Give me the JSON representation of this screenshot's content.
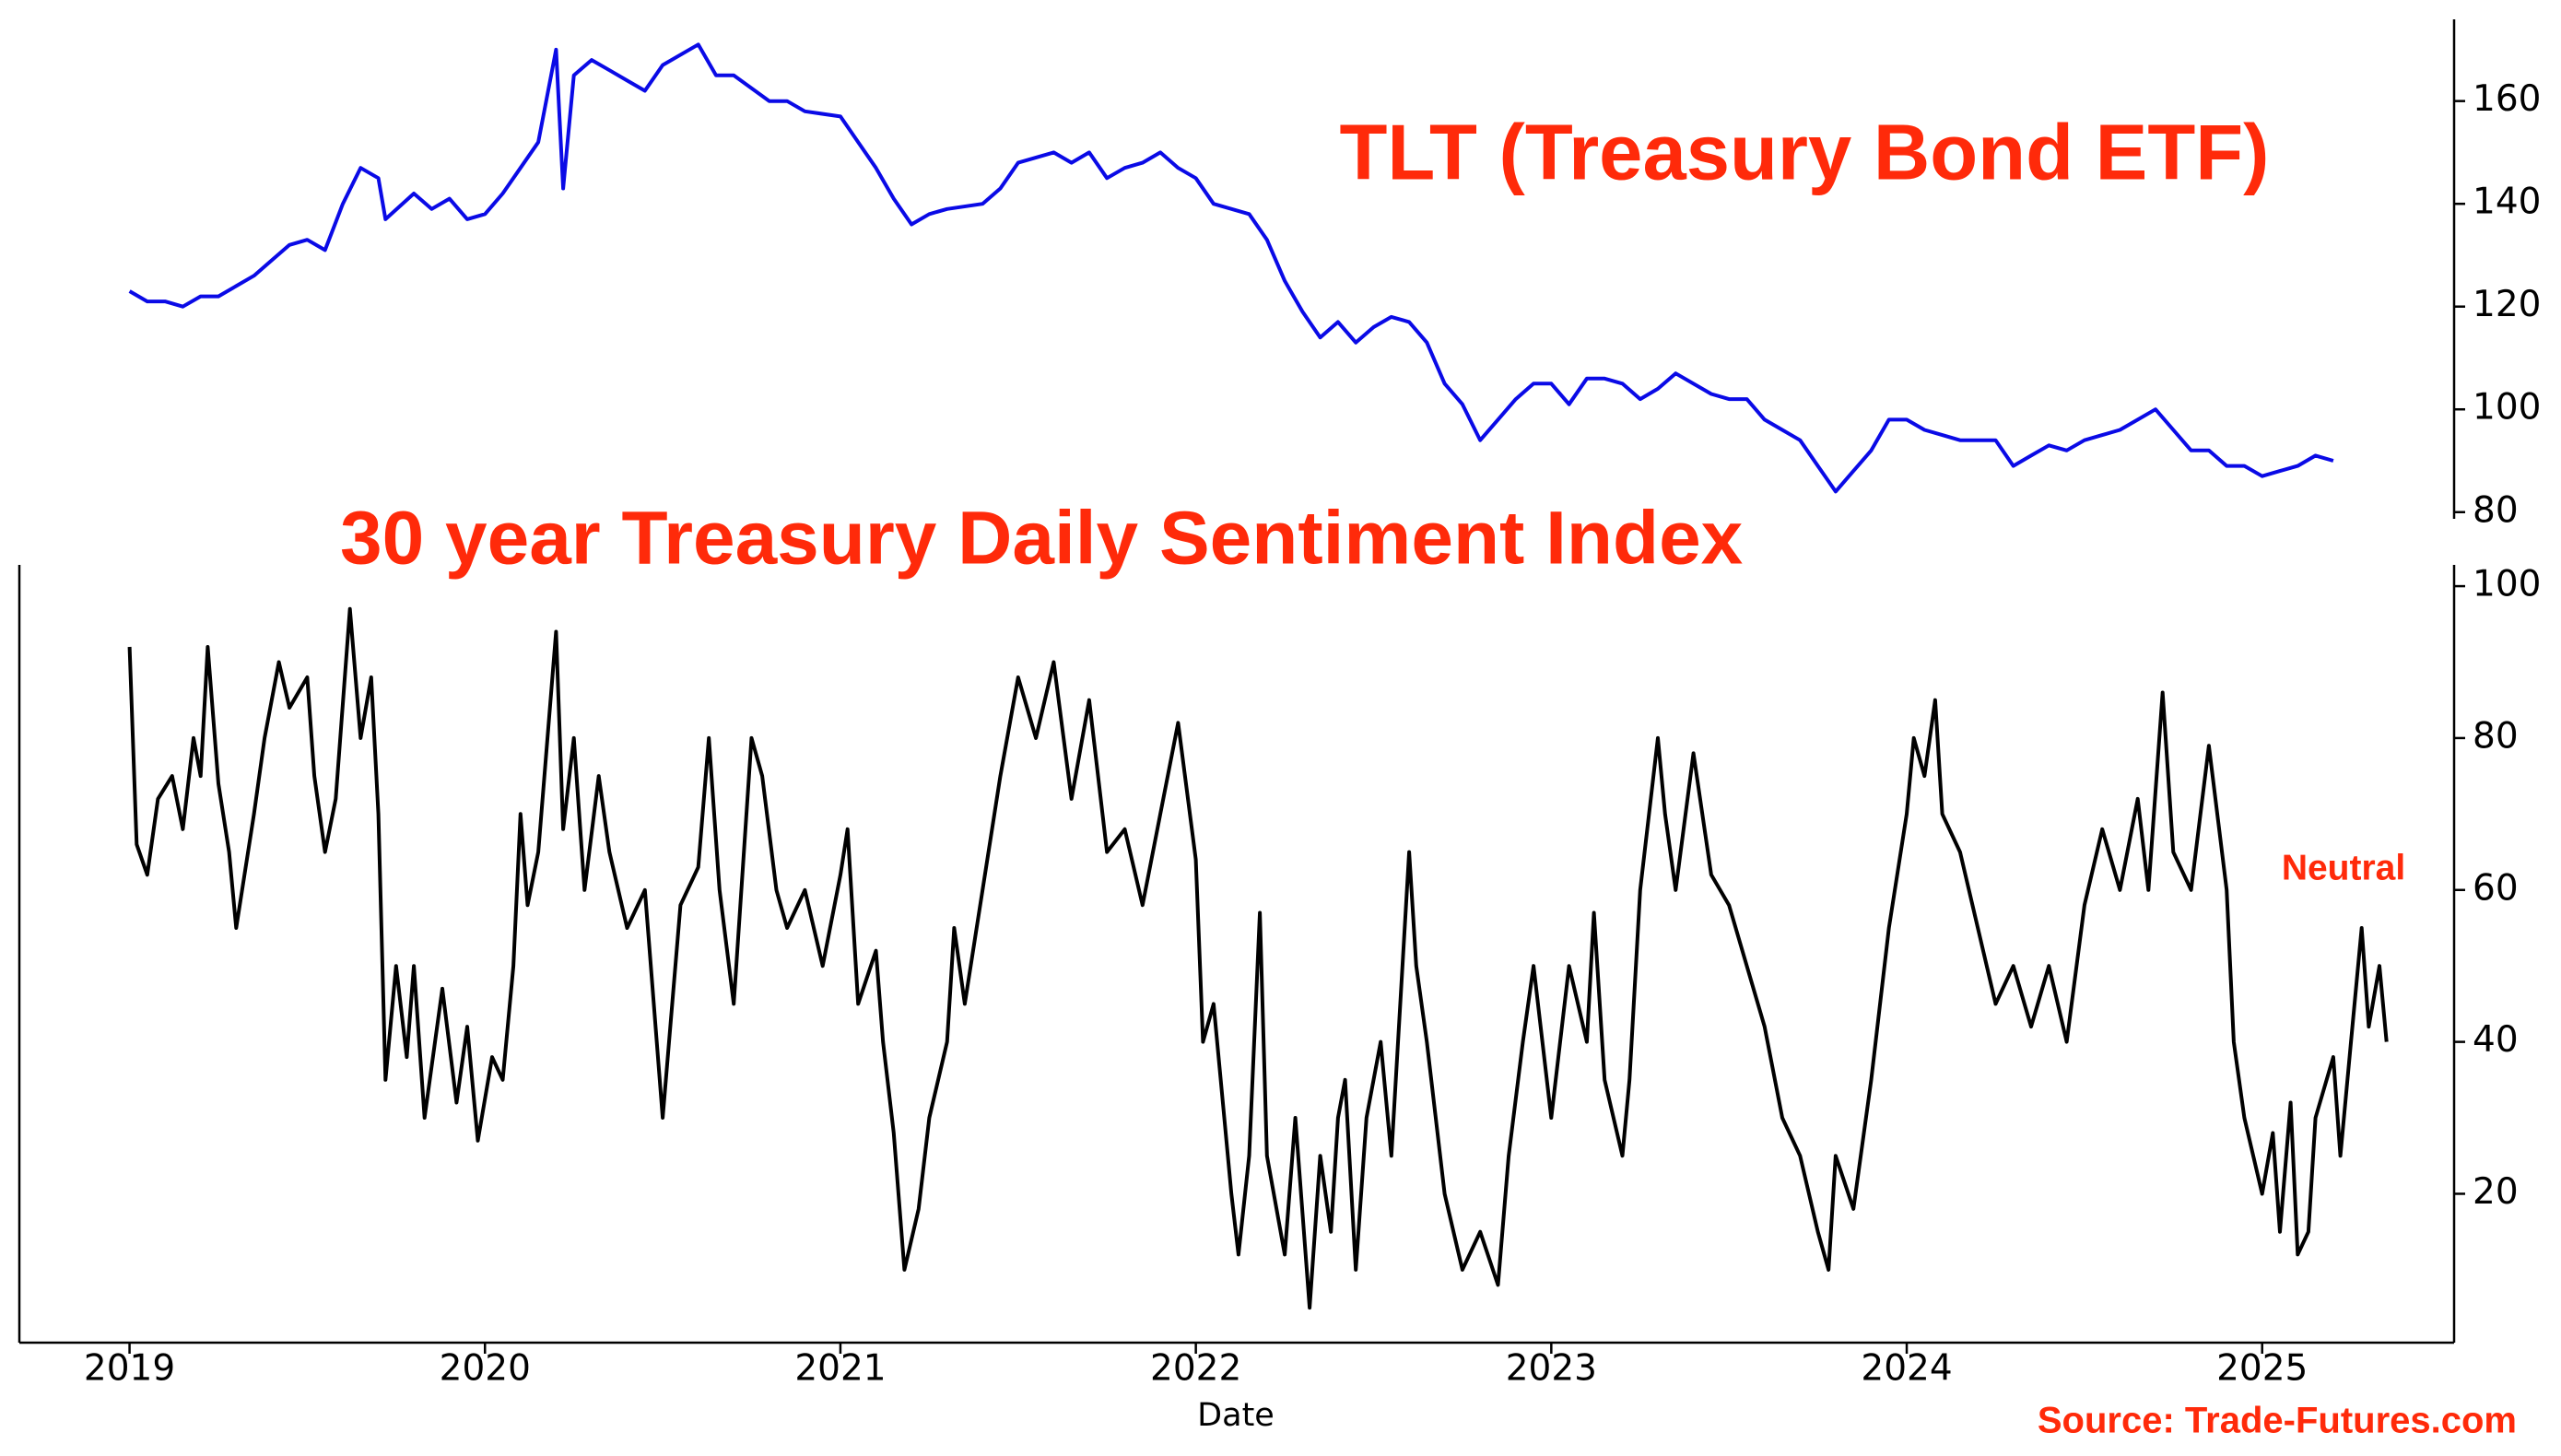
{
  "chart_data": [
    {
      "type": "line",
      "title": "TLT (Treasury Bond ETF)",
      "color": "#0a0ae6",
      "x": [
        2019.0,
        2019.05,
        2019.1,
        2019.15,
        2019.2,
        2019.25,
        2019.3,
        2019.35,
        2019.4,
        2019.45,
        2019.5,
        2019.55,
        2019.6,
        2019.65,
        2019.7,
        2019.72,
        2019.8,
        2019.85,
        2019.9,
        2019.95,
        2020.0,
        2020.05,
        2020.1,
        2020.15,
        2020.2,
        2020.22,
        2020.25,
        2020.3,
        2020.35,
        2020.4,
        2020.45,
        2020.5,
        2020.6,
        2020.65,
        2020.7,
        2020.8,
        2020.85,
        2020.9,
        2021.0,
        2021.05,
        2021.1,
        2021.15,
        2021.2,
        2021.25,
        2021.3,
        2021.4,
        2021.45,
        2021.5,
        2021.6,
        2021.65,
        2021.7,
        2021.75,
        2021.8,
        2021.85,
        2021.9,
        2021.95,
        2022.0,
        2022.05,
        2022.15,
        2022.2,
        2022.25,
        2022.3,
        2022.35,
        2022.4,
        2022.45,
        2022.5,
        2022.55,
        2022.6,
        2022.65,
        2022.7,
        2022.75,
        2022.8,
        2022.85,
        2022.9,
        2022.95,
        2023.0,
        2023.05,
        2023.1,
        2023.15,
        2023.2,
        2023.25,
        2023.3,
        2023.35,
        2023.45,
        2023.5,
        2023.55,
        2023.6,
        2023.65,
        2023.7,
        2023.75,
        2023.8,
        2023.85,
        2023.9,
        2023.95,
        2024.0,
        2024.05,
        2024.1,
        2024.15,
        2024.25,
        2024.3,
        2024.35,
        2024.4,
        2024.45,
        2024.5,
        2024.55,
        2024.6,
        2024.65,
        2024.7,
        2024.75,
        2024.8,
        2024.85,
        2024.9,
        2024.95,
        2025.0,
        2025.05,
        2025.1,
        2025.15,
        2025.2
      ],
      "values": [
        123,
        121,
        121,
        120,
        122,
        122,
        124,
        126,
        129,
        132,
        133,
        131,
        140,
        147,
        145,
        137,
        142,
        139,
        141,
        137,
        138,
        142,
        147,
        152,
        170,
        143,
        165,
        168,
        166,
        164,
        162,
        167,
        171,
        165,
        165,
        160,
        160,
        158,
        157,
        152,
        147,
        141,
        136,
        138,
        139,
        140,
        143,
        148,
        150,
        148,
        150,
        145,
        147,
        148,
        150,
        147,
        145,
        140,
        138,
        133,
        125,
        119,
        114,
        117,
        113,
        116,
        118,
        117,
        113,
        105,
        101,
        94,
        98,
        102,
        105,
        105,
        101,
        106,
        106,
        105,
        102,
        104,
        107,
        103,
        102,
        102,
        98,
        96,
        94,
        89,
        84,
        88,
        92,
        98,
        98,
        96,
        95,
        94,
        94,
        89,
        91,
        93,
        92,
        94,
        95,
        96,
        98,
        100,
        96,
        92,
        92,
        89,
        89,
        87,
        88,
        89,
        91,
        90
      ],
      "xlim": [
        2018.69,
        2025.54
      ],
      "ylim": [
        78.7,
        175.9
      ],
      "yticks": [
        80,
        100,
        120,
        140,
        160
      ]
    },
    {
      "type": "line",
      "title": "30 year Treasury Daily Sentiment Index",
      "annotation": "Neutral",
      "source": "Source: Trade-Futures.com",
      "xlabel": "Date",
      "color": "#000000",
      "x": [
        2019.0,
        2019.02,
        2019.05,
        2019.08,
        2019.12,
        2019.15,
        2019.18,
        2019.2,
        2019.22,
        2019.25,
        2019.28,
        2019.3,
        2019.35,
        2019.38,
        2019.42,
        2019.45,
        2019.5,
        2019.52,
        2019.55,
        2019.58,
        2019.62,
        2019.65,
        2019.68,
        2019.7,
        2019.72,
        2019.75,
        2019.78,
        2019.8,
        2019.83,
        2019.88,
        2019.92,
        2019.95,
        2019.98,
        2020.02,
        2020.05,
        2020.08,
        2020.1,
        2020.12,
        2020.15,
        2020.2,
        2020.22,
        2020.25,
        2020.28,
        2020.32,
        2020.35,
        2020.4,
        2020.45,
        2020.5,
        2020.55,
        2020.6,
        2020.63,
        2020.66,
        2020.7,
        2020.75,
        2020.78,
        2020.82,
        2020.85,
        2020.9,
        2020.95,
        2021.0,
        2021.02,
        2021.05,
        2021.1,
        2021.12,
        2021.15,
        2021.18,
        2021.22,
        2021.25,
        2021.3,
        2021.32,
        2021.35,
        2021.4,
        2021.45,
        2021.5,
        2021.55,
        2021.6,
        2021.65,
        2021.7,
        2021.75,
        2021.8,
        2021.85,
        2021.9,
        2021.95,
        2022.0,
        2022.02,
        2022.05,
        2022.08,
        2022.1,
        2022.12,
        2022.15,
        2022.18,
        2022.2,
        2022.25,
        2022.28,
        2022.32,
        2022.35,
        2022.38,
        2022.4,
        2022.42,
        2022.45,
        2022.48,
        2022.52,
        2022.55,
        2022.6,
        2022.62,
        2022.65,
        2022.7,
        2022.75,
        2022.8,
        2022.85,
        2022.88,
        2022.92,
        2022.95,
        2023.0,
        2023.05,
        2023.1,
        2023.12,
        2023.15,
        2023.2,
        2023.22,
        2023.25,
        2023.3,
        2023.32,
        2023.35,
        2023.4,
        2023.45,
        2023.5,
        2023.55,
        2023.6,
        2023.65,
        2023.7,
        2023.75,
        2023.78,
        2023.8,
        2023.85,
        2023.9,
        2023.95,
        2024.0,
        2024.02,
        2024.05,
        2024.08,
        2024.1,
        2024.15,
        2024.2,
        2024.25,
        2024.3,
        2024.35,
        2024.4,
        2024.45,
        2024.5,
        2024.55,
        2024.6,
        2024.65,
        2024.68,
        2024.72,
        2024.75,
        2024.8,
        2024.85,
        2024.9,
        2024.92,
        2024.95,
        2025.0,
        2025.03,
        2025.05,
        2025.08,
        2025.1,
        2025.13,
        2025.15,
        2025.2,
        2025.22,
        2025.25,
        2025.28,
        2025.3,
        2025.33,
        2025.35
      ],
      "values": [
        92,
        66,
        62,
        72,
        75,
        68,
        80,
        75,
        92,
        74,
        65,
        55,
        70,
        80,
        90,
        84,
        88,
        75,
        65,
        72,
        97,
        80,
        88,
        70,
        35,
        50,
        38,
        50,
        30,
        47,
        32,
        42,
        27,
        38,
        35,
        50,
        70,
        58,
        65,
        94,
        68,
        80,
        60,
        75,
        65,
        55,
        60,
        30,
        58,
        63,
        80,
        60,
        45,
        80,
        75,
        60,
        55,
        60,
        50,
        62,
        68,
        45,
        52,
        40,
        28,
        10,
        18,
        30,
        40,
        55,
        45,
        60,
        75,
        88,
        80,
        90,
        72,
        85,
        65,
        68,
        58,
        70,
        82,
        64,
        40,
        45,
        30,
        20,
        12,
        25,
        57,
        25,
        12,
        30,
        5,
        25,
        15,
        30,
        35,
        10,
        30,
        40,
        25,
        65,
        50,
        40,
        20,
        10,
        15,
        8,
        25,
        40,
        50,
        30,
        50,
        40,
        57,
        35,
        25,
        35,
        60,
        80,
        70,
        60,
        78,
        62,
        58,
        50,
        42,
        30,
        25,
        15,
        10,
        25,
        18,
        35,
        55,
        70,
        80,
        75,
        85,
        70,
        65,
        55,
        45,
        50,
        42,
        50,
        40,
        58,
        68,
        60,
        72,
        60,
        86,
        65,
        60,
        79,
        60,
        40,
        30,
        20,
        28,
        15,
        32,
        12,
        15,
        30,
        38,
        25,
        40,
        55,
        42,
        50,
        40
      ],
      "xlim": [
        2018.69,
        2025.54
      ],
      "xticks": [
        2019,
        2020,
        2021,
        2022,
        2023,
        2024,
        2025
      ],
      "ylim": [
        0.4,
        102.8
      ],
      "yticks": [
        20,
        40,
        60,
        80,
        100
      ]
    }
  ]
}
